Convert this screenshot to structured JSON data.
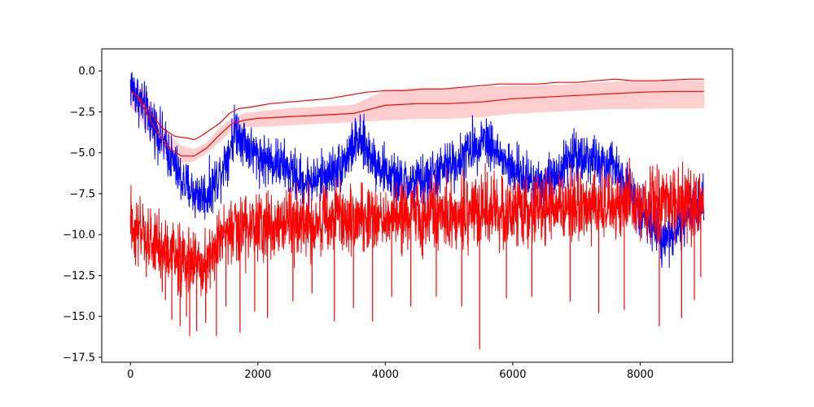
{
  "chart_data": {
    "type": "line",
    "title": "",
    "xlabel": "",
    "ylabel": "",
    "xlim": [
      -450,
      9450
    ],
    "ylim": [
      -17.8,
      1.35
    ],
    "xticks": [
      0,
      2000,
      4000,
      6000,
      8000
    ],
    "xtick_labels": [
      "0",
      "2000",
      "4000",
      "6000",
      "8000"
    ],
    "yticks": [
      0.0,
      -2.5,
      -5.0,
      -7.5,
      -10.0,
      -12.5,
      -15.0,
      -17.5
    ],
    "ytick_labels": [
      "0.0",
      "−2.5",
      "−5.0",
      "−7.5",
      "−10.0",
      "−12.5",
      "−15.0",
      "−17.5"
    ],
    "grid": false,
    "legend": "none",
    "colors": {
      "blue": "#0000ff",
      "red": "#ff0000",
      "band": "#ffcccc"
    },
    "series": [
      {
        "color": "#0000ff",
        "style": "noisy",
        "amplitude": 0.75,
        "x": [
          0,
          100,
          200,
          400,
          600,
          800,
          1000,
          1200,
          1400,
          1550,
          1650,
          1750,
          1900,
          2100,
          2300,
          2500,
          2700,
          2900,
          3100,
          3300,
          3450,
          3550,
          3650,
          3800,
          4000,
          4200,
          4400,
          4600,
          4800,
          5000,
          5200,
          5400,
          5550,
          5650,
          5800,
          6000,
          6200,
          6400,
          6600,
          6800,
          6950,
          7100,
          7300,
          7500,
          7650,
          7800,
          8000,
          8200,
          8400,
          8600,
          8800,
          9000
        ],
        "y": [
          -0.8,
          -1.5,
          -2.2,
          -3.5,
          -5.0,
          -6.7,
          -7.5,
          -7.6,
          -6.3,
          -4.8,
          -3.5,
          -4.0,
          -4.9,
          -5.4,
          -5.6,
          -6.1,
          -6.8,
          -6.7,
          -6.3,
          -5.8,
          -4.9,
          -4.3,
          -4.5,
          -5.3,
          -6.2,
          -6.8,
          -6.9,
          -6.7,
          -6.3,
          -5.8,
          -5.3,
          -4.6,
          -4.0,
          -4.4,
          -5.3,
          -6.1,
          -6.5,
          -6.8,
          -6.6,
          -5.8,
          -5.2,
          -5.1,
          -5.6,
          -5.8,
          -6.0,
          -7.0,
          -8.5,
          -9.5,
          -10.3,
          -9.6,
          -8.7,
          -8.0
        ]
      },
      {
        "color": "#ff0000",
        "style": "noisy",
        "amplitude": 1.05,
        "x": [
          0,
          200,
          500,
          800,
          1000,
          1200,
          1400,
          1600,
          2000,
          2500,
          3000,
          3500,
          4000,
          4500,
          5000,
          5500,
          6000,
          6500,
          7000,
          7500,
          8000,
          8500,
          9000
        ],
        "y": [
          -9.3,
          -10.3,
          -10.9,
          -11.6,
          -11.8,
          -11.5,
          -10.4,
          -9.7,
          -9.5,
          -9.3,
          -9.2,
          -9.0,
          -8.9,
          -8.8,
          -8.7,
          -8.6,
          -8.5,
          -8.4,
          -8.3,
          -8.1,
          -8.1,
          -8.0,
          -8.0
        ],
        "spikes": [
          {
            "x": 250,
            "y": -12.6
          },
          {
            "x": 300,
            "y": -11.5
          },
          {
            "x": 500,
            "y": -13.5
          },
          {
            "x": 550,
            "y": -14.0
          },
          {
            "x": 650,
            "y": -15.2
          },
          {
            "x": 780,
            "y": -15.6
          },
          {
            "x": 880,
            "y": -15.0
          },
          {
            "x": 930,
            "y": -16.2
          },
          {
            "x": 1040,
            "y": -15.9
          },
          {
            "x": 1180,
            "y": -15.4
          },
          {
            "x": 1350,
            "y": -16.2
          },
          {
            "x": 1500,
            "y": -14.4
          },
          {
            "x": 1720,
            "y": -16.0
          },
          {
            "x": 1950,
            "y": -14.7
          },
          {
            "x": 2150,
            "y": -15.1
          },
          {
            "x": 2550,
            "y": -14.1
          },
          {
            "x": 2850,
            "y": -13.6
          },
          {
            "x": 3200,
            "y": -15.3
          },
          {
            "x": 3500,
            "y": -14.5
          },
          {
            "x": 3800,
            "y": -15.3
          },
          {
            "x": 4100,
            "y": -13.8
          },
          {
            "x": 4400,
            "y": -14.4
          },
          {
            "x": 4800,
            "y": -13.8
          },
          {
            "x": 5200,
            "y": -14.4
          },
          {
            "x": 5480,
            "y": -17.0
          },
          {
            "x": 5900,
            "y": -13.9
          },
          {
            "x": 6300,
            "y": -13.8
          },
          {
            "x": 6900,
            "y": -14.1
          },
          {
            "x": 7350,
            "y": -14.8
          },
          {
            "x": 7750,
            "y": -14.6
          },
          {
            "x": 8300,
            "y": -15.6
          },
          {
            "x": 8650,
            "y": -15.1
          },
          {
            "x": 8850,
            "y": -14.0
          },
          {
            "x": 8950,
            "y": -12.6
          }
        ]
      },
      {
        "color": "#ff0000",
        "style": "line",
        "x": [
          0,
          150,
          300,
          500,
          700,
          900,
          1000,
          1100,
          1250,
          1400,
          1550,
          1700,
          1900,
          2200,
          2500,
          2800,
          3100,
          3400,
          3700,
          4000,
          4300,
          4600,
          4900,
          5200,
          5500,
          5800,
          6100,
          6400,
          6700,
          7000,
          7300,
          7600,
          7900,
          8200,
          8500,
          8800,
          9000
        ],
        "y": [
          -1.2,
          -1.7,
          -2.5,
          -3.5,
          -4.0,
          -4.1,
          -4.2,
          -4.0,
          -3.6,
          -3.2,
          -2.6,
          -2.3,
          -2.2,
          -2.0,
          -1.9,
          -1.8,
          -1.7,
          -1.5,
          -1.3,
          -1.2,
          -1.2,
          -1.1,
          -1.1,
          -1.0,
          -0.9,
          -0.8,
          -0.8,
          -0.8,
          -0.7,
          -0.7,
          -0.6,
          -0.5,
          -0.6,
          -0.6,
          -0.55,
          -0.5,
          -0.5
        ]
      },
      {
        "color": "#ff0000",
        "style": "line_with_band",
        "x": [
          0,
          100,
          200,
          400,
          600,
          800,
          1000,
          1200,
          1400,
          1600,
          1800,
          2000,
          2500,
          3000,
          3500,
          4000,
          4500,
          5000,
          5500,
          6000,
          6500,
          7000,
          7500,
          8000,
          8500,
          9000
        ],
        "y": [
          -1.2,
          -1.5,
          -2.2,
          -3.6,
          -4.7,
          -5.2,
          -5.2,
          -4.7,
          -3.9,
          -3.2,
          -3.0,
          -2.9,
          -2.8,
          -2.7,
          -2.6,
          -2.1,
          -2.0,
          -2.0,
          -1.9,
          -1.7,
          -1.6,
          -1.5,
          -1.4,
          -1.3,
          -1.25,
          -1.25
        ],
        "lower": [
          -2.2,
          -2.5,
          -3.2,
          -4.4,
          -5.3,
          -5.6,
          -5.5,
          -5.0,
          -4.3,
          -3.6,
          -3.4,
          -3.4,
          -3.3,
          -3.2,
          -3.1,
          -3.0,
          -2.9,
          -2.9,
          -2.8,
          -2.6,
          -2.5,
          -2.4,
          -2.3,
          -2.3,
          -2.25,
          -2.25
        ],
        "upper": [
          -0.6,
          -0.8,
          -1.3,
          -2.6,
          -3.9,
          -4.6,
          -4.8,
          -4.4,
          -3.5,
          -2.9,
          -2.6,
          -2.5,
          -2.3,
          -2.2,
          -2.1,
          -1.2,
          -1.1,
          -1.1,
          -1.0,
          -0.9,
          -0.9,
          -0.8,
          -0.7,
          -0.6,
          -0.6,
          -0.6
        ]
      }
    ]
  }
}
